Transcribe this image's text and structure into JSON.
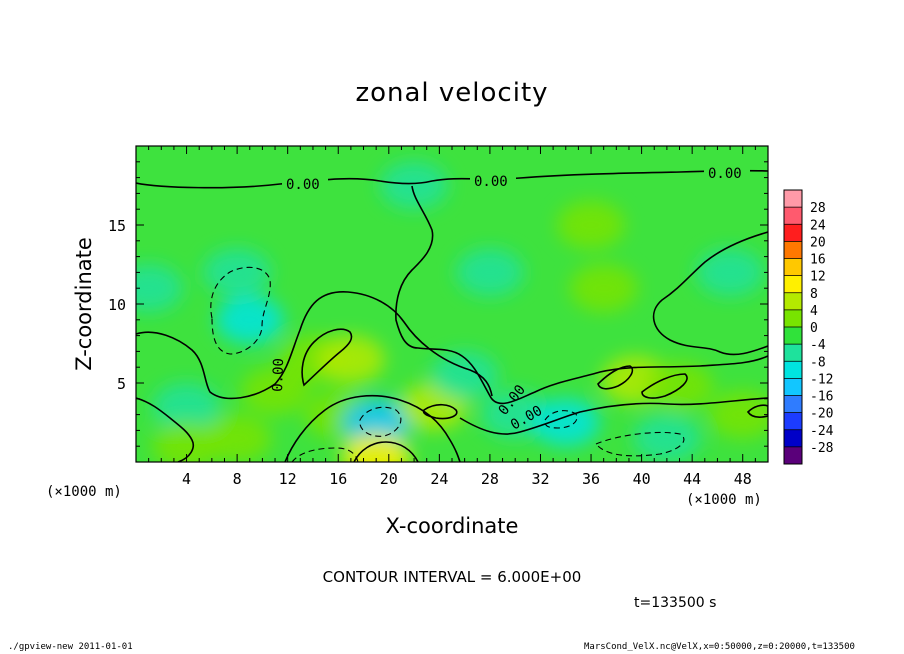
{
  "title": "zonal velocity",
  "chart_data": {
    "type": "heatmap",
    "title": "zonal velocity",
    "xlabel": "X-coordinate",
    "ylabel": "Z-coordinate",
    "x_unit_label": "(×1000 m)",
    "xlim": [
      0,
      50
    ],
    "ylim": [
      0,
      20
    ],
    "x_ticks": [
      4,
      8,
      12,
      16,
      20,
      24,
      28,
      32,
      36,
      40,
      44,
      48
    ],
    "y_ticks": [
      5,
      10,
      15
    ],
    "colorbar_levels": [
      -28,
      -24,
      -20,
      -16,
      -12,
      -8,
      -4,
      0,
      4,
      8,
      12,
      16,
      20,
      24,
      28
    ],
    "colorbar_colors": [
      "#5a007a",
      "#0000c8",
      "#1c3cff",
      "#2f7cff",
      "#12c6ff",
      "#00e4e0",
      "#1ee29c",
      "#30e23a",
      "#78e400",
      "#b4ea00",
      "#fff000",
      "#ffc800",
      "#ff7800",
      "#ff1e1e",
      "#ff5a6e",
      "#ff9aa8"
    ],
    "contour_interval": "CONTOUR INTERVAL = 6.000E+00",
    "contour_labels": [
      "0.00",
      "0.00",
      "0.00",
      "0.00",
      "0.00",
      "0.00"
    ],
    "field_cells": [
      {
        "x": 9,
        "z": 9,
        "value": -8
      },
      {
        "x": 8,
        "z": 12,
        "value": -4
      },
      {
        "x": 1,
        "z": 11,
        "value": -4
      },
      {
        "x": 22,
        "z": 17.5,
        "value": -4
      },
      {
        "x": 4,
        "z": 3.5,
        "value": -4
      },
      {
        "x": 4,
        "z": 1,
        "value": 4
      },
      {
        "x": 8,
        "z": 1.5,
        "value": 4
      },
      {
        "x": 14,
        "z": 6.5,
        "value": 4
      },
      {
        "x": 17,
        "z": 6.5,
        "value": 8
      },
      {
        "x": 11,
        "z": 4.5,
        "value": 4
      },
      {
        "x": 16,
        "z": 3,
        "value": 4
      },
      {
        "x": 19,
        "z": 2.5,
        "value": -12
      },
      {
        "x": 19,
        "z": 0.3,
        "value": 12
      },
      {
        "x": 23.5,
        "z": 3.5,
        "value": 8
      },
      {
        "x": 26,
        "z": 5.5,
        "value": -4
      },
      {
        "x": 30,
        "z": 3,
        "value": -4
      },
      {
        "x": 34,
        "z": 2.5,
        "value": -8
      },
      {
        "x": 39.5,
        "z": 5.2,
        "value": 8
      },
      {
        "x": 43,
        "z": 4.8,
        "value": 4
      },
      {
        "x": 42,
        "z": 1.5,
        "value": -4
      },
      {
        "x": 48,
        "z": 3,
        "value": 4
      },
      {
        "x": 37,
        "z": 11,
        "value": 4
      },
      {
        "x": 36,
        "z": 15,
        "value": 4
      },
      {
        "x": 28,
        "z": 12,
        "value": -4
      },
      {
        "x": 47,
        "z": 12,
        "value": -4
      }
    ]
  },
  "time_label": "t=133500 s",
  "footer_left": "./gpview-new 2011-01-01",
  "footer_right": "MarsCond_VelX.nc@VelX,x=0:50000,z=0:20000,t=133500"
}
